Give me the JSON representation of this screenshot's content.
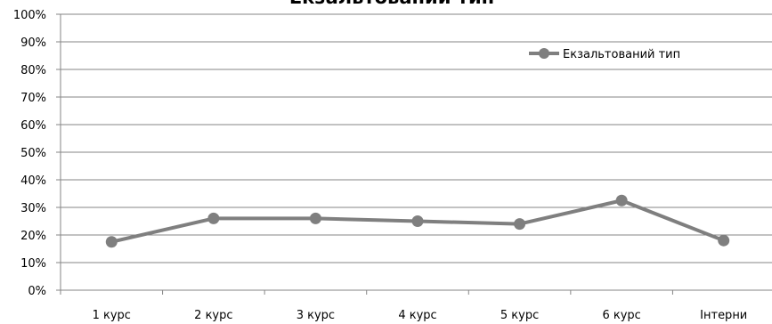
{
  "chart_data": {
    "type": "line",
    "title": "Екзальтований тип",
    "categories": [
      "1 курс",
      "2 курс",
      "3 курс",
      "4 курс",
      "5 курс",
      "6 курс",
      "Інтерни"
    ],
    "series": [
      {
        "name": "Екзальтований тип",
        "values": [
          17.5,
          26,
          26,
          25,
          24,
          32.5,
          18
        ]
      }
    ],
    "ylim": [
      0,
      100
    ],
    "yticks": [
      "0%",
      "10%",
      "20%",
      "30%",
      "40%",
      "50%",
      "60%",
      "70%",
      "80%",
      "90%",
      "100%"
    ],
    "grid": true,
    "legend": "top-right",
    "colors": {
      "series": "#7f7f7f",
      "grid": "#868686",
      "axis": "#868686"
    }
  }
}
